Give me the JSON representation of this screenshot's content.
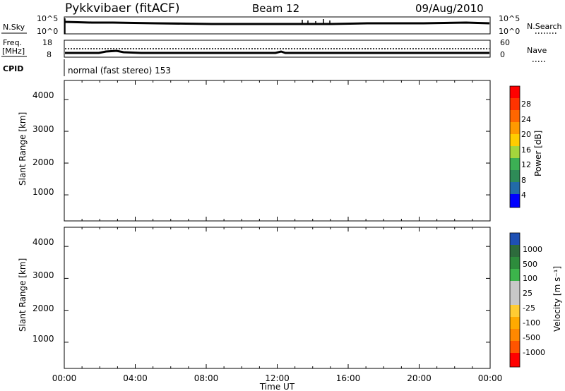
{
  "header": {
    "station": "Pykkvibaer (fitACF)",
    "beam": "Beam 12",
    "date": "09/Aug/2010"
  },
  "top_panels": {
    "nsky_label": "N.Sky",
    "nsky_ticks": [
      "10^5",
      "10^0"
    ],
    "nsearch_label": "N.Search",
    "nsearch_ticks": [
      "10^5",
      "10^0"
    ],
    "freq_label": "Freq.",
    "freq_unit": "[MHz]",
    "freq_ticks": [
      "18",
      "8"
    ],
    "nave_label": "Nave",
    "nave_ticks": [
      "60",
      "0"
    ],
    "cpid_label": "CPID",
    "cpid_text": "normal (fast stereo) 153"
  },
  "chart_data": [
    {
      "type": "heatmap",
      "title": "",
      "ylabel": "Slant Range [km]",
      "xlabel": "",
      "y_ticks": [
        "4000",
        "3000",
        "2000",
        "1000"
      ],
      "ylim": [
        180,
        4600
      ],
      "colorbar": {
        "label": "Power [dB]",
        "ticks": [
          "28",
          "24",
          "20",
          "16",
          "12",
          "8",
          "4"
        ],
        "colors": [
          "#ff0000",
          "#ff6600",
          "#ff9900",
          "#ffcc00",
          "#e8dc00",
          "#a4d63c",
          "#3cb054",
          "#2e8b57",
          "#226ba8",
          "#1a3fc8",
          "#0000ff"
        ]
      }
    },
    {
      "type": "heatmap",
      "title": "",
      "ylabel": "Slant Range [km]",
      "xlabel": "Time UT",
      "y_ticks": [
        "4000",
        "3000",
        "2000",
        "1000"
      ],
      "ylim": [
        180,
        4600
      ],
      "x_ticks": [
        "00:00",
        "04:00",
        "08:00",
        "12:00",
        "16:00",
        "20:00",
        "00:00"
      ],
      "colorbar": {
        "label": "Velocity [m s⁻¹]",
        "ticks": [
          "1000",
          "500",
          "100",
          "25",
          "-25",
          "-100",
          "-500",
          "-1000"
        ],
        "colors": [
          "#1e50b4",
          "#2d8c3c",
          "#3cb44b",
          "#8ed35a",
          "#c8c8c8",
          "#c8c8c8",
          "#ffcc33",
          "#ff9900",
          "#ff6600",
          "#ff0000"
        ]
      }
    }
  ]
}
